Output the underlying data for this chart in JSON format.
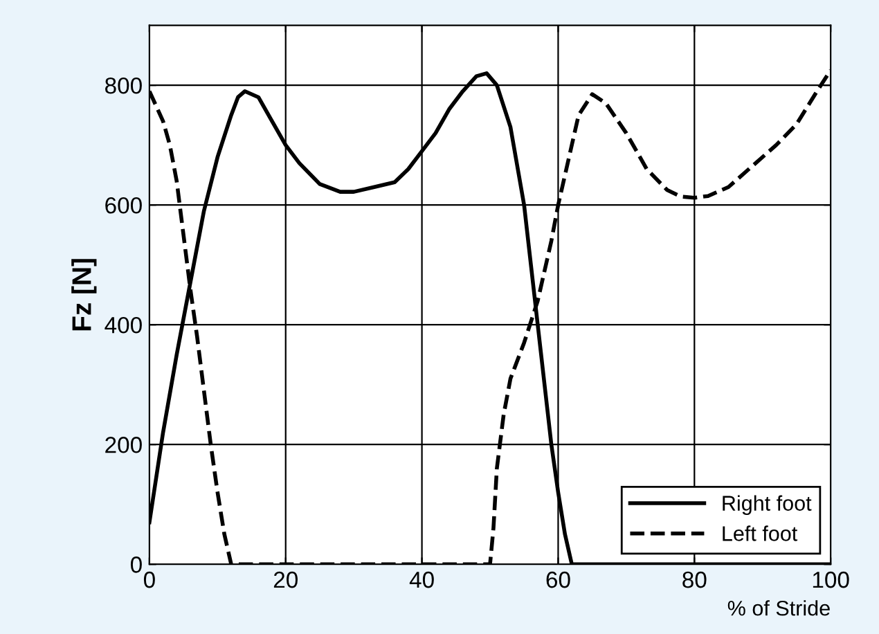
{
  "chart_data": {
    "type": "line",
    "xlabel": "% of Stride",
    "ylabel": "Fz [N]",
    "xlim": [
      0,
      100
    ],
    "ylim": [
      0,
      900
    ],
    "xticks": [
      0,
      20,
      40,
      60,
      80,
      100
    ],
    "yticks": [
      0,
      200,
      400,
      600,
      800
    ],
    "grid": true,
    "legend": "bottom right",
    "marker": "none",
    "series": [
      {
        "name": "Right foot",
        "color": "#000000",
        "line_style": "solid",
        "x": [
          0,
          2,
          4,
          6,
          8,
          10,
          12,
          13,
          14,
          16,
          18,
          20,
          22,
          25,
          28,
          30,
          33,
          36,
          38,
          40,
          42,
          44,
          46,
          48,
          49.5,
          51,
          53,
          55,
          56,
          57,
          58,
          59,
          60,
          61,
          62,
          100
        ],
        "values": [
          70,
          220,
          350,
          470,
          590,
          680,
          750,
          780,
          790,
          780,
          740,
          700,
          670,
          635,
          622,
          622,
          630,
          638,
          660,
          690,
          720,
          760,
          790,
          815,
          820,
          800,
          730,
          600,
          500,
          400,
          300,
          200,
          120,
          50,
          0,
          0
        ]
      },
      {
        "name": "Left foot",
        "color": "#000000",
        "line_style": "dashed",
        "x": [
          0,
          2,
          3,
          4,
          5,
          6,
          7,
          8,
          9,
          10,
          11,
          12,
          50,
          50.5,
          51,
          52,
          53,
          55,
          57,
          59,
          60,
          62,
          63,
          65,
          67,
          70,
          73,
          76,
          78,
          80,
          82,
          85,
          88,
          92,
          95,
          98,
          100
        ],
        "values": [
          790,
          740,
          700,
          640,
          550,
          460,
          380,
          290,
          200,
          120,
          50,
          0,
          0,
          60,
          160,
          250,
          310,
          370,
          440,
          540,
          600,
          700,
          750,
          785,
          770,
          720,
          660,
          625,
          614,
          612,
          615,
          630,
          660,
          700,
          735,
          790,
          825
        ]
      }
    ]
  }
}
